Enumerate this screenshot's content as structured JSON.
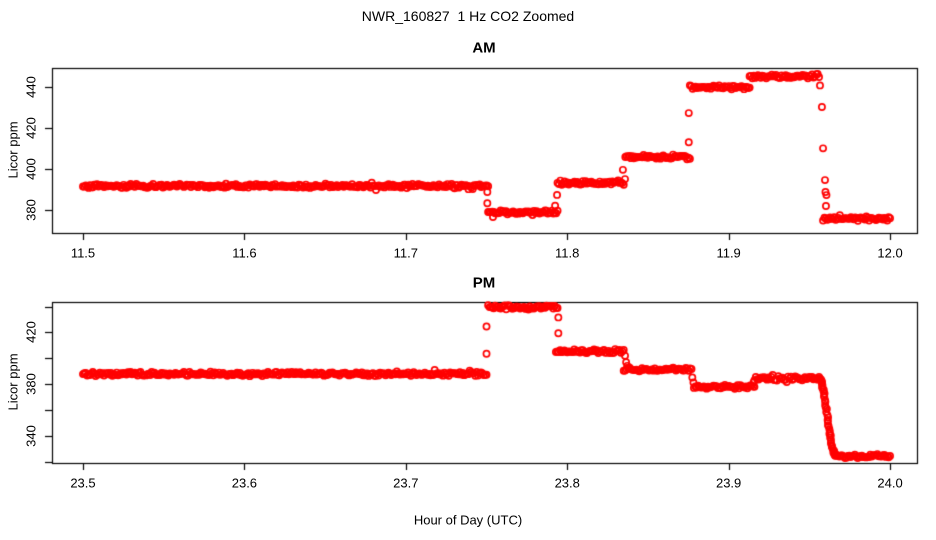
{
  "title": "NWR_160827  1 Hz CO2 Zoomed",
  "xlabel": "Hour of Day (UTC)",
  "colors": {
    "points": "#FF0000",
    "axis": "#000000",
    "background": "#FFFFFF"
  },
  "chart_data": [
    {
      "type": "scatter",
      "panel_title": "AM",
      "ylabel": "Licor ppm",
      "marker": "open-circle",
      "point_color": "#FF0000",
      "xlim": [
        11.4808,
        12.0167
      ],
      "ylim": [
        369.0,
        449.5
      ],
      "xticks": [
        {
          "v": 11.5,
          "label": "11.5"
        },
        {
          "v": 11.6,
          "label": "11.6"
        },
        {
          "v": 11.7,
          "label": "11.7"
        },
        {
          "v": 11.8,
          "label": "11.8"
        },
        {
          "v": 11.9,
          "label": "11.9"
        },
        {
          "v": 12.0,
          "label": "12.0"
        }
      ],
      "yticks": [
        {
          "v": 380,
          "label": "380"
        },
        {
          "v": 400,
          "label": "400"
        },
        {
          "v": 420,
          "label": "420"
        },
        {
          "v": 440,
          "label": "440"
        }
      ],
      "yticks_minor": [],
      "segments": [
        {
          "t0": 11.5,
          "t1": 11.751,
          "ppm": 392.0
        },
        {
          "t0": 11.751,
          "t1": 11.794,
          "ppm": 379.0
        },
        {
          "t0": 11.794,
          "t1": 11.835,
          "ppm": 393.5
        },
        {
          "t0": 11.836,
          "t1": 11.876,
          "ppm": 406.0
        },
        {
          "t0": 11.876,
          "t1": 11.913,
          "ppm": 440.0
        },
        {
          "t0": 11.913,
          "t1": 11.956,
          "ppm": 445.5
        },
        {
          "t0": 11.9585,
          "t1": 12.0,
          "ppm": 376.0
        }
      ],
      "ramps": [],
      "transitions": [
        [
          11.7505,
          389.0
        ],
        [
          11.7505,
          383.5
        ],
        [
          11.754,
          376.8
        ],
        [
          11.7937,
          387.6
        ],
        [
          11.7925,
          382.3
        ],
        [
          11.8345,
          399.8
        ],
        [
          11.8358,
          395.3
        ],
        [
          11.8753,
          427.5
        ],
        [
          11.8753,
          413.3
        ],
        [
          11.9566,
          441.0
        ],
        [
          11.9578,
          430.5
        ],
        [
          11.9585,
          410.3
        ],
        [
          11.9597,
          394.8
        ],
        [
          11.96,
          389.0
        ],
        [
          11.9606,
          387.5
        ],
        [
          11.9603,
          382.2
        ]
      ]
    },
    {
      "type": "scatter",
      "panel_title": "PM",
      "ylabel": "Licor ppm",
      "marker": "open-circle",
      "point_color": "#FF0000",
      "xlim": [
        23.4808,
        24.0167
      ],
      "ylim": [
        319.2,
        443.5
      ],
      "xticks": [
        {
          "v": 23.5,
          "label": "23.5"
        },
        {
          "v": 23.6,
          "label": "23.6"
        },
        {
          "v": 23.7,
          "label": "23.7"
        },
        {
          "v": 23.8,
          "label": "23.8"
        },
        {
          "v": 23.9,
          "label": "23.9"
        },
        {
          "v": 24.0,
          "label": "24.0"
        }
      ],
      "yticks": [
        {
          "v": 340,
          "label": "340"
        },
        {
          "v": 380,
          "label": "380"
        },
        {
          "v": 420,
          "label": "420"
        }
      ],
      "yticks_minor": [
        320,
        360,
        400,
        440
      ],
      "segments": [
        {
          "t0": 23.5,
          "t1": 23.75,
          "ppm": 388.0
        },
        {
          "t0": 23.751,
          "t1": 23.794,
          "ppm": 439.5
        },
        {
          "t0": 23.793,
          "t1": 23.835,
          "ppm": 405.5
        },
        {
          "t0": 23.835,
          "t1": 23.877,
          "ppm": 391.5
        },
        {
          "t0": 23.8785,
          "t1": 23.916,
          "ppm": 378.0
        },
        {
          "t0": 23.916,
          "t1": 23.956,
          "ppm": 384.5
        },
        {
          "t0": 23.966,
          "t1": 24.0,
          "ppm": 324.5
        }
      ],
      "ramps": [
        {
          "t0": 23.956,
          "t1": 23.9665,
          "p0": 384.5,
          "p1": 325.0,
          "shape": "cosine"
        }
      ],
      "transitions": [
        [
          23.75,
          424.6
        ],
        [
          23.75,
          403.6
        ],
        [
          23.7945,
          431.6
        ],
        [
          23.7945,
          419.4
        ],
        [
          23.8358,
          402.0
        ],
        [
          23.8365,
          397.0
        ],
        [
          23.8372,
          394.2
        ],
        [
          23.8775,
          385.2
        ],
        [
          23.8782,
          381.4
        ],
        [
          23.9155,
          381.5
        ]
      ]
    }
  ]
}
